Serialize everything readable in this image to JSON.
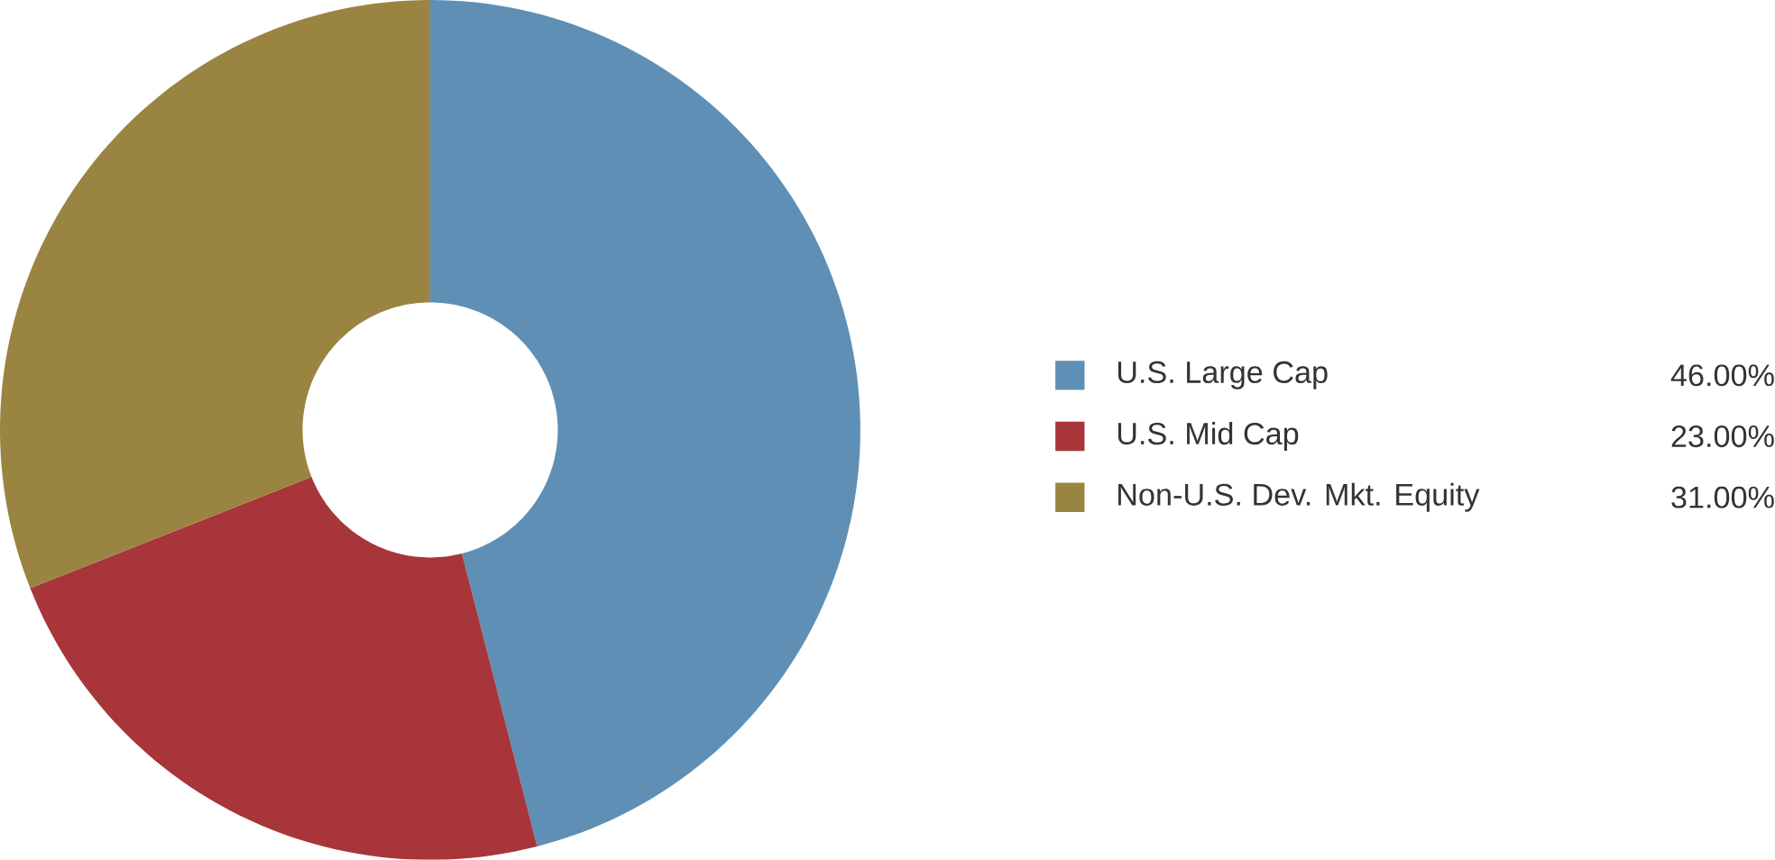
{
  "chart_data": {
    "type": "donut",
    "categories": [
      "U.S. Large Cap",
      "U.S. Mid Cap",
      "Non-U.S. Dev. Mkt. Equity"
    ],
    "values": [
      46,
      23,
      31
    ],
    "colors": [
      "#5f8fb4",
      "#a8353a",
      "#9a8441"
    ],
    "value_labels": [
      "46.00%",
      "23.00%",
      "31.00%"
    ],
    "legend": "right"
  }
}
